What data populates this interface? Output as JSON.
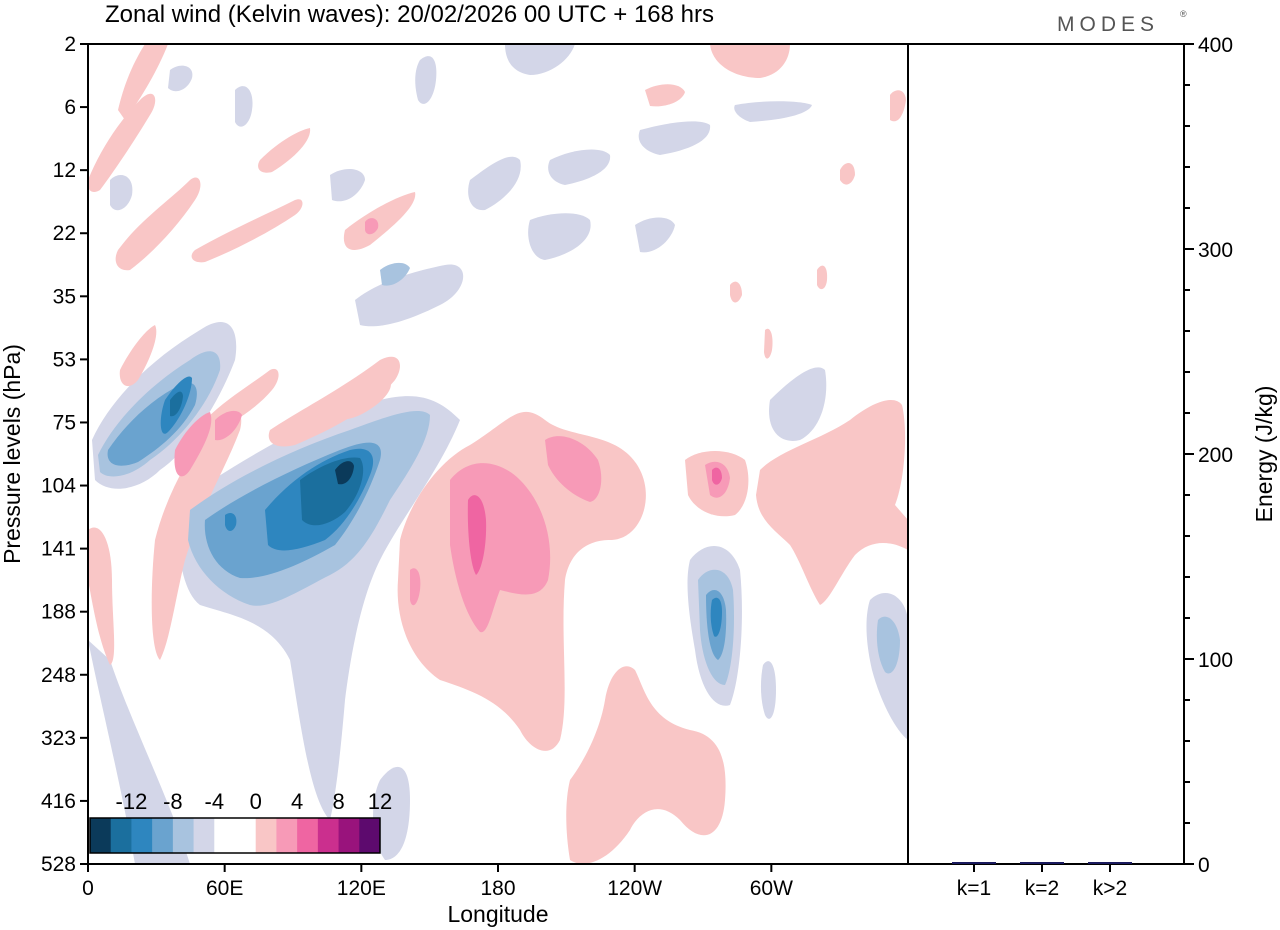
{
  "chart_data": [
    {
      "type": "heatmap",
      "title": "Zonal wind (Kelvin waves):  20/02/2026  00 UTC  + 168 hrs",
      "xlabel": "Longitude",
      "ylabel": "Pressure levels (hPa)",
      "x_ticks": [
        "0",
        "60E",
        "120E",
        "180",
        "120W",
        "60W"
      ],
      "x_tick_values": [
        0,
        60,
        120,
        180,
        240,
        300
      ],
      "xlim": [
        0,
        360
      ],
      "y_ticks": [
        "2",
        "6",
        "12",
        "22",
        "35",
        "53",
        "75",
        "104",
        "141",
        "188",
        "248",
        "323",
        "416",
        "528"
      ],
      "colorbar": {
        "labels": [
          "-12",
          "-8",
          "-4",
          "0",
          "4",
          "8",
          "12"
        ],
        "colors": [
          "#0b3a5a",
          "#1b6f9e",
          "#2e86bf",
          "#6aa3cf",
          "#a8c3df",
          "#d3d6e8",
          "#ffffff",
          "#ffffff",
          "#f9c6c6",
          "#f79ab7",
          "#ef65a2",
          "#cb2f8e",
          "#99137c",
          "#5d0a6e"
        ]
      },
      "regions": [
        {
          "name": "strong-easterly-core-120e",
          "level": -16,
          "color": "#0b3a5a"
        },
        {
          "name": "easterly-band-60e-120e",
          "level": -8,
          "color": "#2e86bf"
        },
        {
          "name": "easterly-jet-20e-40e",
          "level": -8,
          "color": "#2e86bf"
        },
        {
          "name": "easterly-cell-60w",
          "level": -8,
          "color": "#2e86bf"
        },
        {
          "name": "westerly-core-180",
          "level": 8,
          "color": "#ef65a2"
        },
        {
          "name": "westerly-region-180-120w",
          "level": 4,
          "color": "#f9c6c6"
        },
        {
          "name": "westerly-region-60w",
          "level": 4,
          "color": "#f9c6c6"
        }
      ]
    },
    {
      "type": "bar",
      "ylabel": "Energy (J/kg)",
      "categories": [
        "k=1",
        "k=2",
        "k>2"
      ],
      "values": [
        0.8,
        0.4,
        0.5
      ],
      "ylim": [
        0,
        400
      ],
      "y_ticks": [
        "0",
        "100",
        "200",
        "300",
        "400"
      ],
      "bar_color": "#1a1a5e"
    }
  ],
  "brand": "MODES",
  "brand_mark": "®"
}
